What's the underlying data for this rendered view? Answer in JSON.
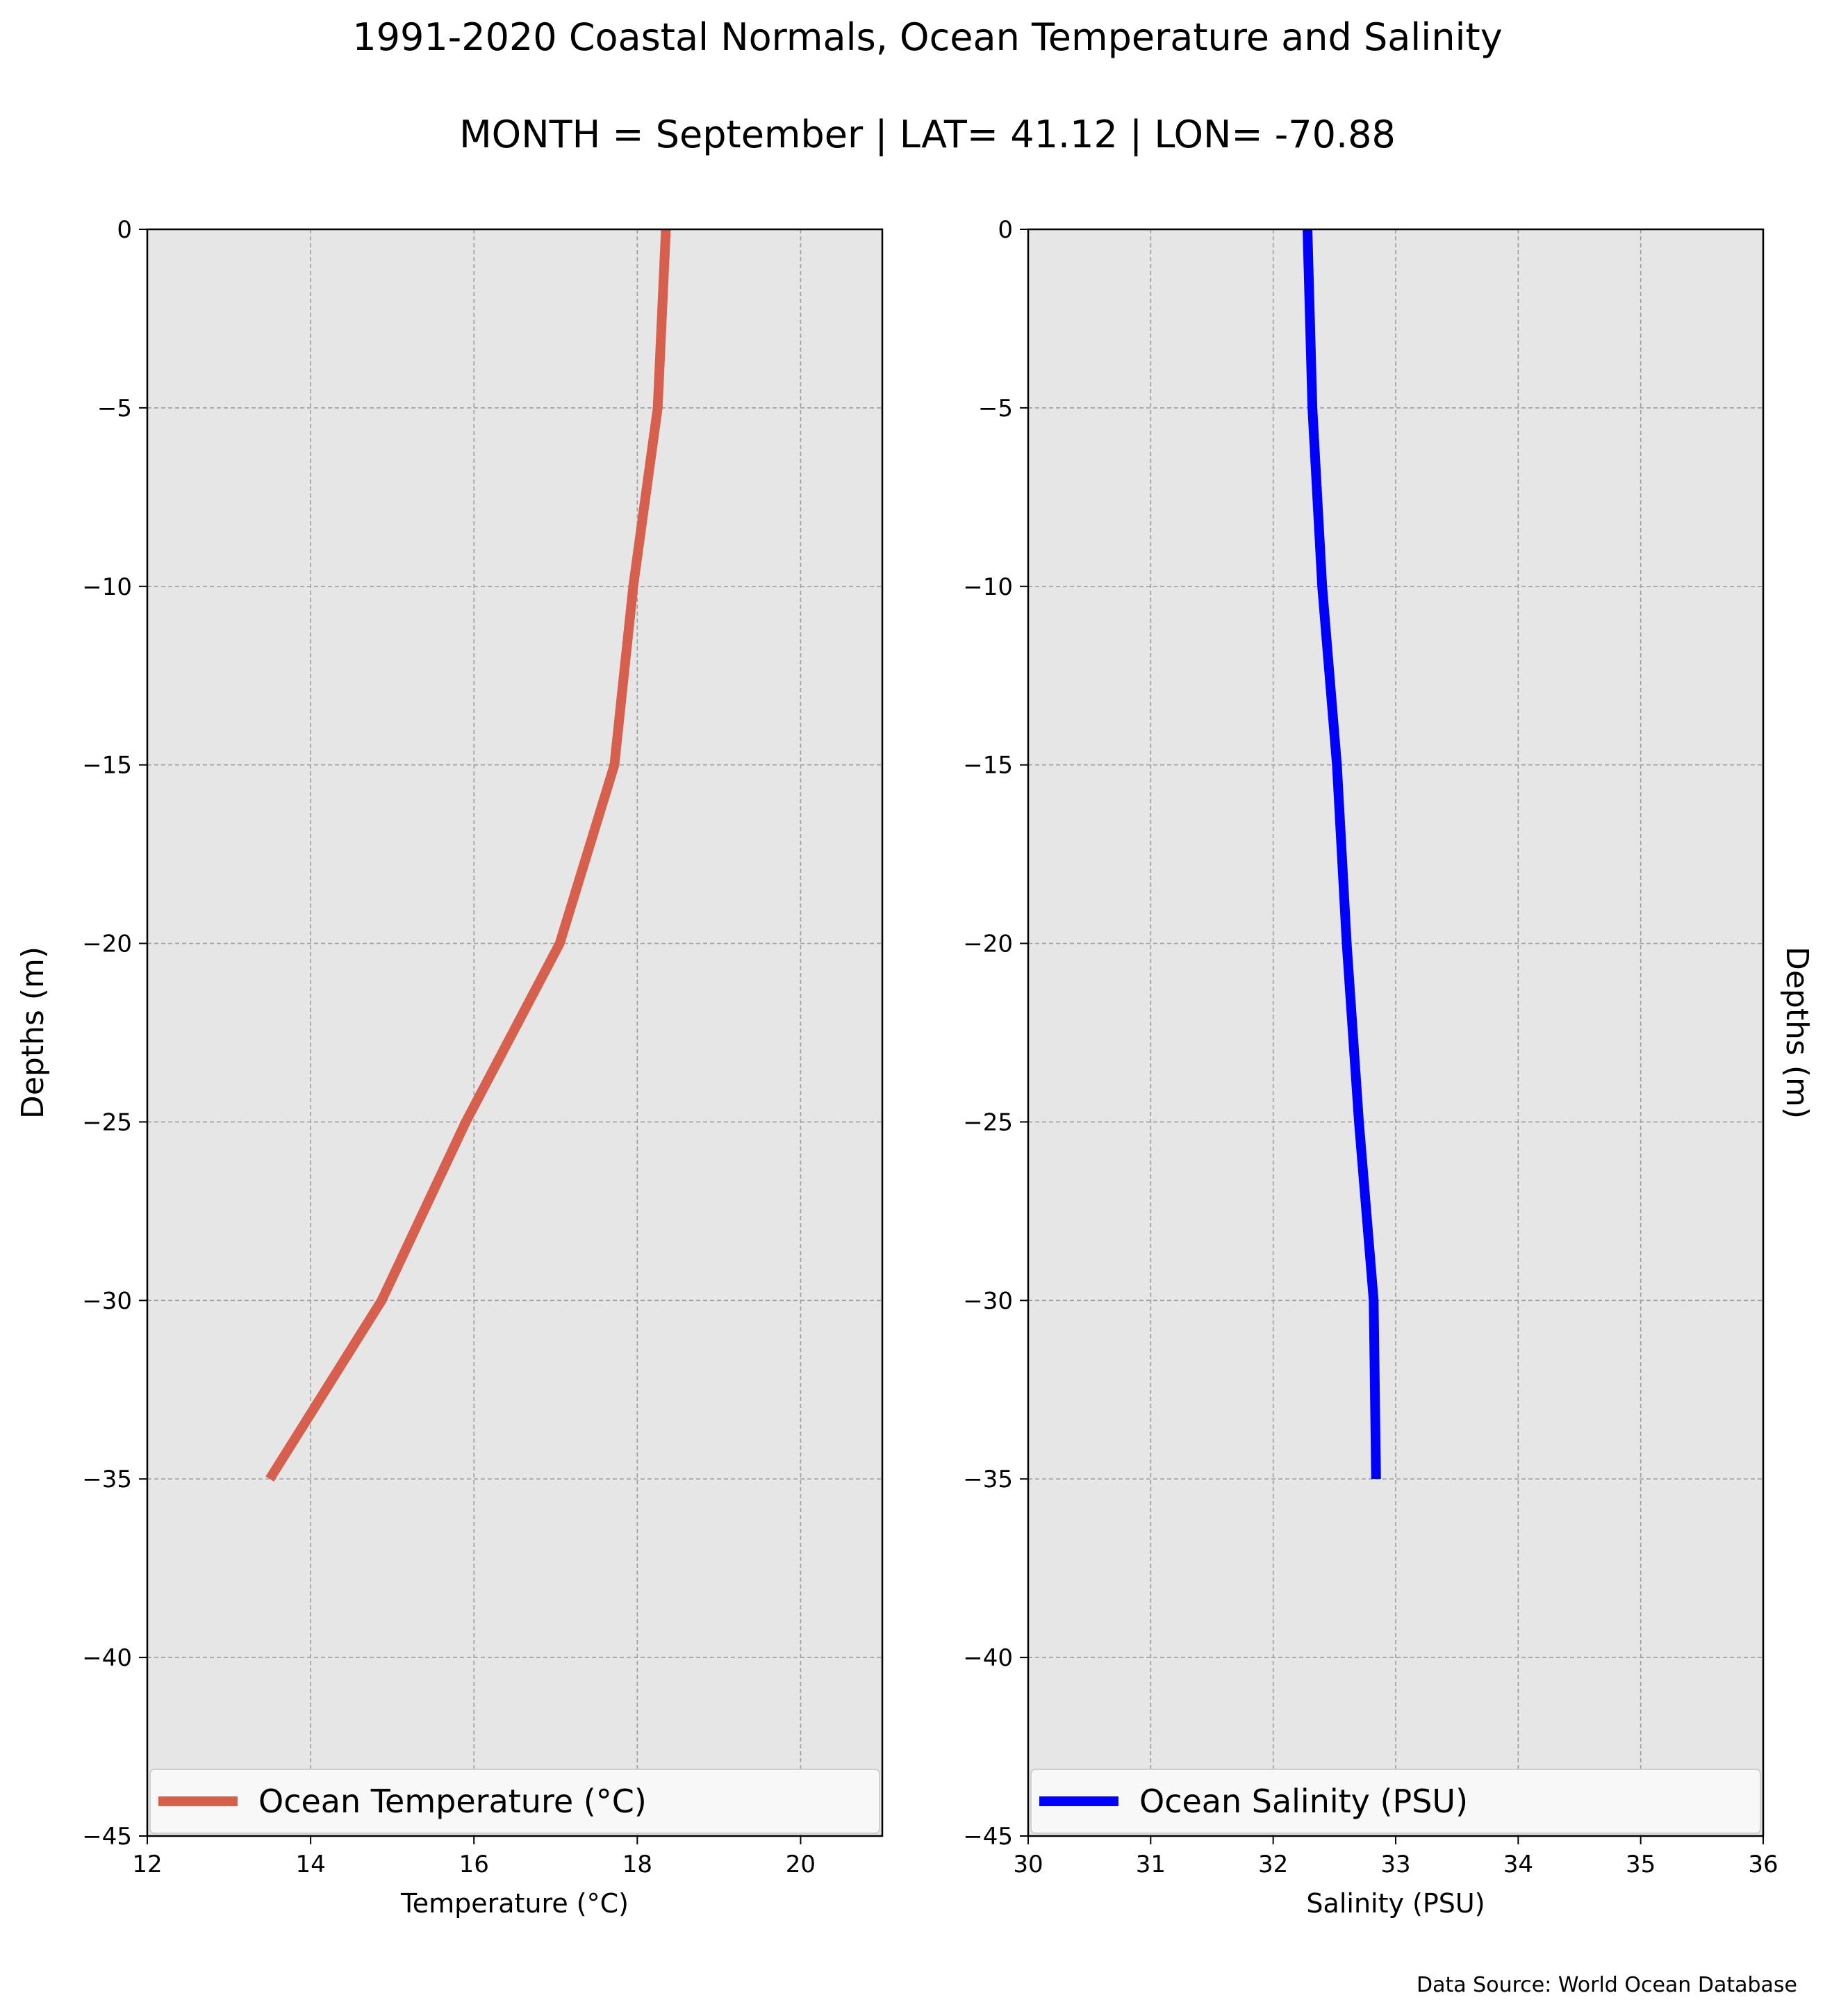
{
  "figure": {
    "title": "1991-2020 Coastal Normals, Ocean Temperature and Salinity",
    "subtitle": "MONTH = September | LAT= 41.12 | LON= -70.88",
    "source": "Data Source: World Ocean Database"
  },
  "chart_data": [
    {
      "type": "line",
      "xlabel": "Temperature ($^\\circ$C)",
      "xlabel_display": "Temperature (°C)",
      "ylabel": "Depths (m)",
      "xlim": [
        12,
        21
      ],
      "ylim": [
        -45,
        0
      ],
      "xticks": [
        "12",
        "14",
        "16",
        "18",
        "20"
      ],
      "yticks": [
        "0",
        "−5",
        "−10",
        "−15",
        "−20",
        "−25",
        "−30",
        "−35",
        "−40",
        "−45"
      ],
      "grid": true,
      "legend": "bottom",
      "color": "#d65f4e",
      "series": [
        {
          "name": "Ocean Temperature (°C)",
          "x": [
            18.35,
            18.25,
            17.95,
            17.72,
            17.05,
            15.9,
            14.87,
            13.5
          ],
          "y": [
            0,
            -5,
            -10,
            -15,
            -20,
            -25,
            -30,
            -35
          ]
        }
      ]
    },
    {
      "type": "line",
      "xlabel": "Salinity (PSU)",
      "ylabel": "Depths (m)",
      "xlim": [
        30,
        36
      ],
      "ylim": [
        -45,
        0
      ],
      "xticks": [
        "30",
        "31",
        "32",
        "33",
        "34",
        "35",
        "36"
      ],
      "yticks": [
        "0",
        "−5",
        "−10",
        "−15",
        "−20",
        "−25",
        "−30",
        "−35",
        "−40",
        "−45"
      ],
      "grid": true,
      "legend": "bottom",
      "color": "#0000ff",
      "series": [
        {
          "name": "Ocean Salinity (PSU)",
          "x": [
            32.28,
            32.32,
            32.4,
            32.52,
            32.6,
            32.7,
            32.82,
            32.84
          ],
          "y": [
            0,
            -5,
            -10,
            -15,
            -20,
            -25,
            -30,
            -35
          ]
        }
      ]
    }
  ]
}
